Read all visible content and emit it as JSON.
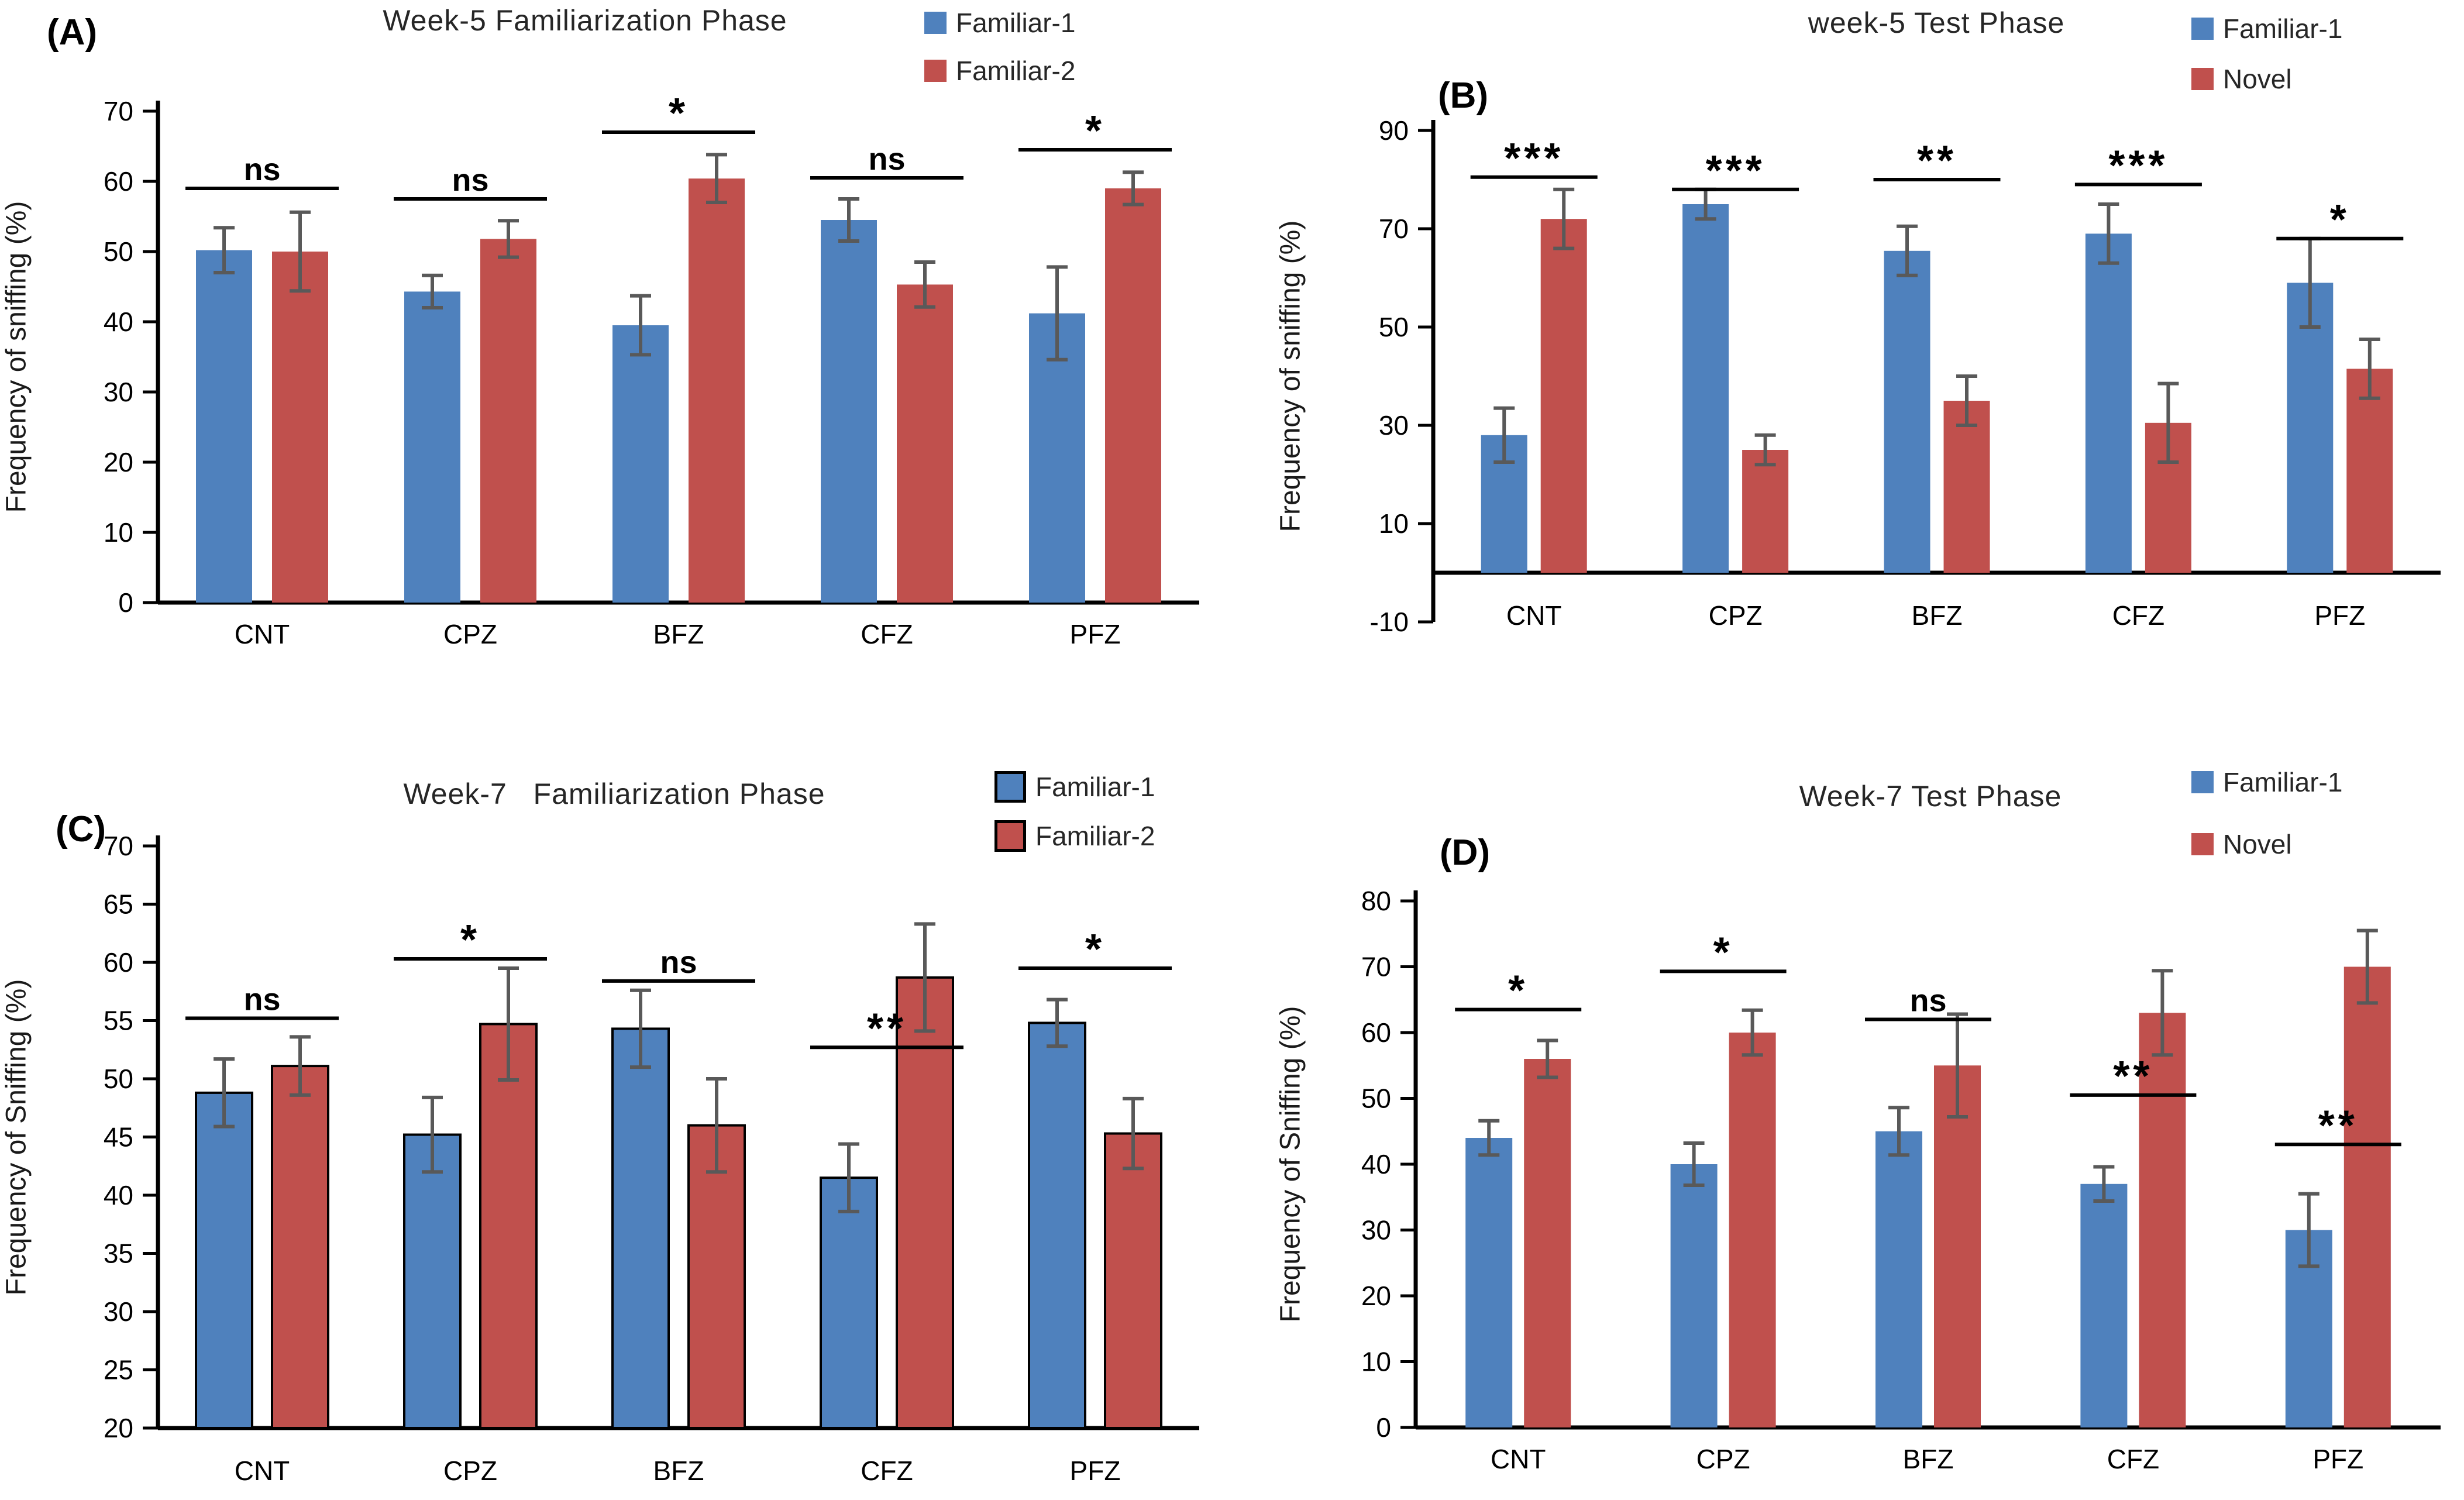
{
  "figure": {
    "background": "#ffffff",
    "accent_blue": "#4F81BD",
    "accent_red": "#C0504D",
    "error_bar_color": "#595959",
    "axis_color": "#000000"
  },
  "chart_data": [
    {
      "id": "A",
      "panel_label": "(A)",
      "type": "bar",
      "title": "Week-5 Familiarization Phase",
      "ylabel": "Frequency of sniffing (%)",
      "categories": [
        "CNT",
        "CPZ",
        "BFZ",
        "CFZ",
        "PFZ"
      ],
      "ylim": [
        0,
        70
      ],
      "yticks": [
        0,
        10,
        20,
        30,
        40,
        50,
        60,
        70
      ],
      "grid": false,
      "legend_position": "top-right",
      "bar_outline": false,
      "series": [
        {
          "name": "Familiar-1",
          "color": "#4F81BD",
          "values": [
            50.2,
            44.3,
            39.5,
            54.5,
            41.2
          ],
          "errors": [
            3.2,
            2.3,
            4.2,
            3.0,
            6.6
          ]
        },
        {
          "name": "Familiar-2",
          "color": "#C0504D",
          "values": [
            50.0,
            51.8,
            60.4,
            45.3,
            59.0
          ],
          "errors": [
            5.6,
            2.6,
            3.4,
            3.2,
            2.3
          ]
        }
      ],
      "significance": [
        {
          "category": "CNT",
          "label": "ns",
          "y": 59
        },
        {
          "category": "CPZ",
          "label": "ns",
          "y": 57.5
        },
        {
          "category": "BFZ",
          "label": "*",
          "y": 67
        },
        {
          "category": "CFZ",
          "label": "ns",
          "y": 60.5
        },
        {
          "category": "PFZ",
          "label": "*",
          "y": 64.5
        }
      ]
    },
    {
      "id": "B",
      "panel_label": "(B)",
      "type": "bar",
      "title": "week-5 Test Phase",
      "ylabel": "Frequency of sniffing (%)",
      "categories": [
        "CNT",
        "CPZ",
        "BFZ",
        "CFZ",
        "PFZ"
      ],
      "ylim": [
        -10,
        90
      ],
      "yticks": [
        -10,
        10,
        30,
        50,
        70,
        90
      ],
      "grid": false,
      "legend_position": "top-right",
      "bar_outline": false,
      "series": [
        {
          "name": "Familiar-1",
          "color": "#4F81BD",
          "values": [
            28.0,
            75.0,
            65.5,
            69.0,
            59.0
          ],
          "errors": [
            5.5,
            3.0,
            5.0,
            6.0,
            9.0
          ]
        },
        {
          "name": "Novel",
          "color": "#C0504D",
          "values": [
            72.0,
            25.0,
            35.0,
            30.5,
            41.5
          ],
          "errors": [
            6.0,
            3.0,
            5.0,
            8.0,
            6.0
          ]
        }
      ],
      "significance": [
        {
          "category": "CNT",
          "label": "***",
          "y": 80.5
        },
        {
          "category": "CPZ",
          "label": "***",
          "y": 78
        },
        {
          "category": "BFZ",
          "label": "**",
          "y": 80
        },
        {
          "category": "CFZ",
          "label": "***",
          "y": 79
        },
        {
          "category": "PFZ",
          "label": "*",
          "y": 68
        }
      ]
    },
    {
      "id": "C",
      "panel_label": "(C)",
      "type": "bar",
      "title": "Week-7   Familiarization Phase",
      "ylabel": "Frequency of Sniffing (%)",
      "categories": [
        "CNT",
        "CPZ",
        "BFZ",
        "CFZ",
        "PFZ"
      ],
      "ylim": [
        20,
        70
      ],
      "yticks": [
        20,
        25,
        30,
        35,
        40,
        45,
        50,
        55,
        60,
        65,
        70
      ],
      "grid": false,
      "legend_position": "top-right",
      "bar_outline": true,
      "series": [
        {
          "name": "Familiar-1",
          "color": "#4F81BD",
          "values": [
            48.8,
            45.2,
            54.3,
            41.5,
            54.8
          ],
          "errors": [
            2.9,
            3.2,
            3.3,
            2.9,
            2.0
          ]
        },
        {
          "name": "Familiar-2",
          "color": "#C0504D",
          "values": [
            51.1,
            54.7,
            46.0,
            58.7,
            45.3
          ],
          "errors": [
            2.5,
            4.8,
            4.0,
            4.6,
            3.0
          ]
        }
      ],
      "significance": [
        {
          "category": "CNT",
          "label": "ns",
          "y": 55.2
        },
        {
          "category": "CPZ",
          "label": "*",
          "y": 60.3
        },
        {
          "category": "BFZ",
          "label": "ns",
          "y": 58.4
        },
        {
          "category": "CFZ",
          "label": "**",
          "y": 52.7
        },
        {
          "category": "PFZ",
          "label": "*",
          "y": 59.5
        }
      ]
    },
    {
      "id": "D",
      "panel_label": "(D)",
      "type": "bar",
      "title": "Week-7 Test Phase",
      "ylabel": "Frequency of Sniffing (%)",
      "categories": [
        "CNT",
        "CPZ",
        "BFZ",
        "CFZ",
        "PFZ"
      ],
      "ylim": [
        0,
        80
      ],
      "yticks": [
        0,
        10,
        20,
        30,
        40,
        50,
        60,
        70,
        80
      ],
      "grid": false,
      "legend_position": "top-right",
      "bar_outline": false,
      "series": [
        {
          "name": "Familiar-1",
          "color": "#4F81BD",
          "values": [
            44.0,
            40.0,
            45.0,
            37.0,
            30.0
          ],
          "errors": [
            2.6,
            3.2,
            3.6,
            2.6,
            5.5
          ]
        },
        {
          "name": "Novel",
          "color": "#C0504D",
          "values": [
            56.0,
            60.0,
            55.0,
            63.0,
            70.0
          ],
          "errors": [
            2.8,
            3.4,
            7.8,
            6.4,
            5.5
          ]
        }
      ],
      "significance": [
        {
          "category": "CNT",
          "label": "*",
          "y": 63.5
        },
        {
          "category": "CPZ",
          "label": "*",
          "y": 69.3
        },
        {
          "category": "BFZ",
          "label": "ns",
          "y": 62
        },
        {
          "category": "CFZ",
          "label": "**",
          "y": 50.5
        },
        {
          "category": "PFZ",
          "label": "**",
          "y": 43
        }
      ]
    }
  ]
}
